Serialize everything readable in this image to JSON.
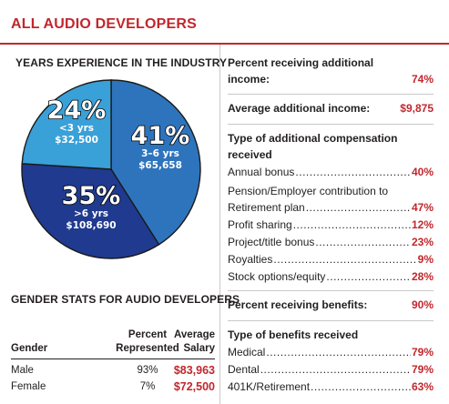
{
  "header": {
    "title": "ALL AUDIO DEVELOPERS"
  },
  "colors": {
    "accent": "#c1272d",
    "pie_light": "#3aa0d8",
    "pie_mid": "#2e74bd",
    "pie_dark": "#1f3a8f"
  },
  "chart_data": {
    "type": "pie",
    "title": "YEARS EXPERIENCE IN THE INDUSTRY",
    "slices": [
      {
        "percent_label": "41%",
        "value": 41,
        "range": "3–6 yrs",
        "salary": "$65,658"
      },
      {
        "percent_label": "35%",
        "value": 35,
        "range": ">6 yrs",
        "salary": "$108,690"
      },
      {
        "percent_label": "24%",
        "value": 24,
        "range": "<3 yrs",
        "salary": "$32,500"
      }
    ]
  },
  "gender": {
    "title": "GENDER STATS FOR AUDIO DEVELOPERS",
    "headers": {
      "gender": "Gender",
      "percent_line1": "Percent",
      "percent_line2": "Represented",
      "salary_line1": "Average",
      "salary_line2": "Salary"
    },
    "rows": [
      {
        "gender": "Male",
        "percent": "93%",
        "salary": "$83,963"
      },
      {
        "gender": "Female",
        "percent": "7%",
        "salary": "$72,500"
      }
    ]
  },
  "stats": {
    "additional_income_label_1": "Percent receiving additional",
    "additional_income_label_2": "income:",
    "additional_income_value": "74%",
    "avg_additional_label": "Average additional income:",
    "avg_additional_value": "$9,875",
    "compensation_title_1": "Type of additional compensation",
    "compensation_title_2": "received",
    "compensation": [
      {
        "label": "Annual bonus",
        "value": "40%"
      },
      {
        "label": "Pension/Employer contribution to",
        "value": ""
      },
      {
        "label": "Retirement plan",
        "value": "47%"
      },
      {
        "label": "Profit sharing",
        "value": "12%"
      },
      {
        "label": "Project/title bonus",
        "value": "23%"
      },
      {
        "label": "Royalties",
        "value": "9%"
      },
      {
        "label": "Stock options/equity",
        "value": "28%"
      }
    ],
    "benefits_label": "Percent receiving benefits:",
    "benefits_value": "90%",
    "benefits_title": "Type of benefits received",
    "benefits": [
      {
        "label": "Medical",
        "value": "79%"
      },
      {
        "label": "Dental",
        "value": "79%"
      },
      {
        "label": "401K/Retirement",
        "value": "63%"
      }
    ]
  }
}
